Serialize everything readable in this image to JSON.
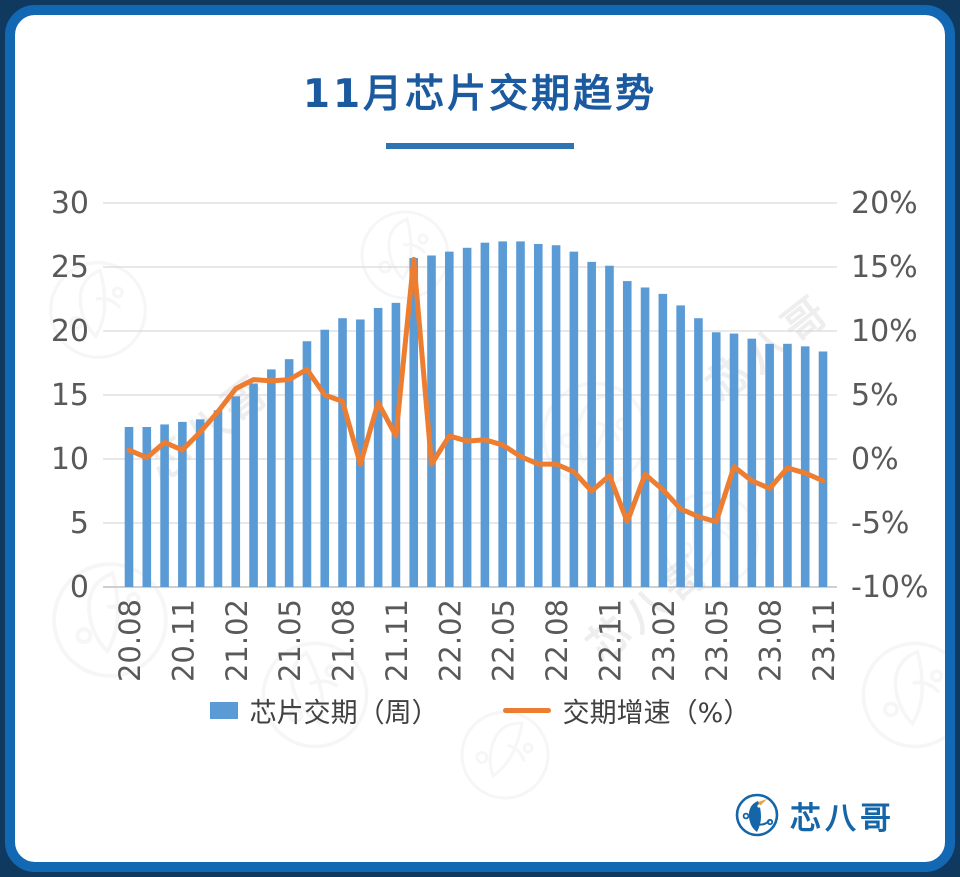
{
  "title": "11月芯片交期趋势",
  "legend": {
    "bars_label": "芯片交期（周）",
    "line_label": "交期增速（%）"
  },
  "brand": {
    "name": "芯八哥"
  },
  "colors": {
    "bar": "#5b9bd5",
    "line": "#ed7d31",
    "title": "#1c5aa0",
    "frame": "#1268b3",
    "axis_text": "#595959",
    "gridline": "#d9d9d9"
  },
  "chart_data": {
    "type": "bar",
    "title": "11月芯片交期趋势",
    "categories": [
      "20.08",
      "20.09",
      "20.10",
      "20.11",
      "20.12",
      "21.01",
      "21.02",
      "21.03",
      "21.04",
      "21.05",
      "21.06",
      "21.07",
      "21.08",
      "21.09",
      "21.10",
      "21.11",
      "21.12",
      "22.01",
      "22.02",
      "22.03",
      "22.04",
      "22.05",
      "22.06",
      "22.07",
      "22.08",
      "22.09",
      "22.10",
      "22.11",
      "22.12",
      "23.01",
      "23.02",
      "23.03",
      "23.04",
      "23.05",
      "23.06",
      "23.07",
      "23.08",
      "23.09",
      "23.10",
      "23.11"
    ],
    "x_tick_labels_shown": [
      "20.08",
      "20.11",
      "21.02",
      "21.05",
      "21.08",
      "21.11",
      "22.02",
      "22.05",
      "22.08",
      "22.11",
      "23.02",
      "23.05",
      "23.08",
      "23.11"
    ],
    "series": [
      {
        "name": "芯片交期（周）",
        "type": "bar",
        "axis": "left",
        "values": [
          12.5,
          12.5,
          12.7,
          12.9,
          13.1,
          13.8,
          14.9,
          15.9,
          17.0,
          17.8,
          19.2,
          20.1,
          21.0,
          20.9,
          21.8,
          22.2,
          25.7,
          25.9,
          26.2,
          26.5,
          26.9,
          27.0,
          27.0,
          26.8,
          26.7,
          26.2,
          25.4,
          25.1,
          23.9,
          23.4,
          22.9,
          22.0,
          21.0,
          19.9,
          19.8,
          19.4,
          19.0,
          19.0,
          18.8,
          18.4
        ]
      },
      {
        "name": "交期增速（%）",
        "type": "line",
        "axis": "right",
        "values": [
          0.7,
          0.1,
          1.3,
          0.7,
          2.1,
          3.7,
          5.5,
          6.2,
          6.1,
          6.2,
          7.0,
          5.0,
          4.5,
          -0.4,
          4.4,
          1.8,
          15.6,
          -0.4,
          1.8,
          1.4,
          1.5,
          1.1,
          0.2,
          -0.4,
          -0.4,
          -1.0,
          -2.5,
          -1.3,
          -4.9,
          -1.2,
          -2.4,
          -3.9,
          -4.5,
          -4.9,
          -0.6,
          -1.7,
          -2.3,
          -0.7,
          -1.1,
          -1.7
        ]
      }
    ],
    "left_axis": {
      "min": 0,
      "max": 30,
      "tick_labels": [
        "0",
        "5",
        "10",
        "15",
        "20",
        "25",
        "30"
      ]
    },
    "right_axis": {
      "min": -10,
      "max": 20,
      "tick_labels": [
        "-10%",
        "-5%",
        "0%",
        "5%",
        "10%",
        "15%",
        "20%"
      ]
    },
    "grid": true,
    "legend_position": "bottom"
  }
}
